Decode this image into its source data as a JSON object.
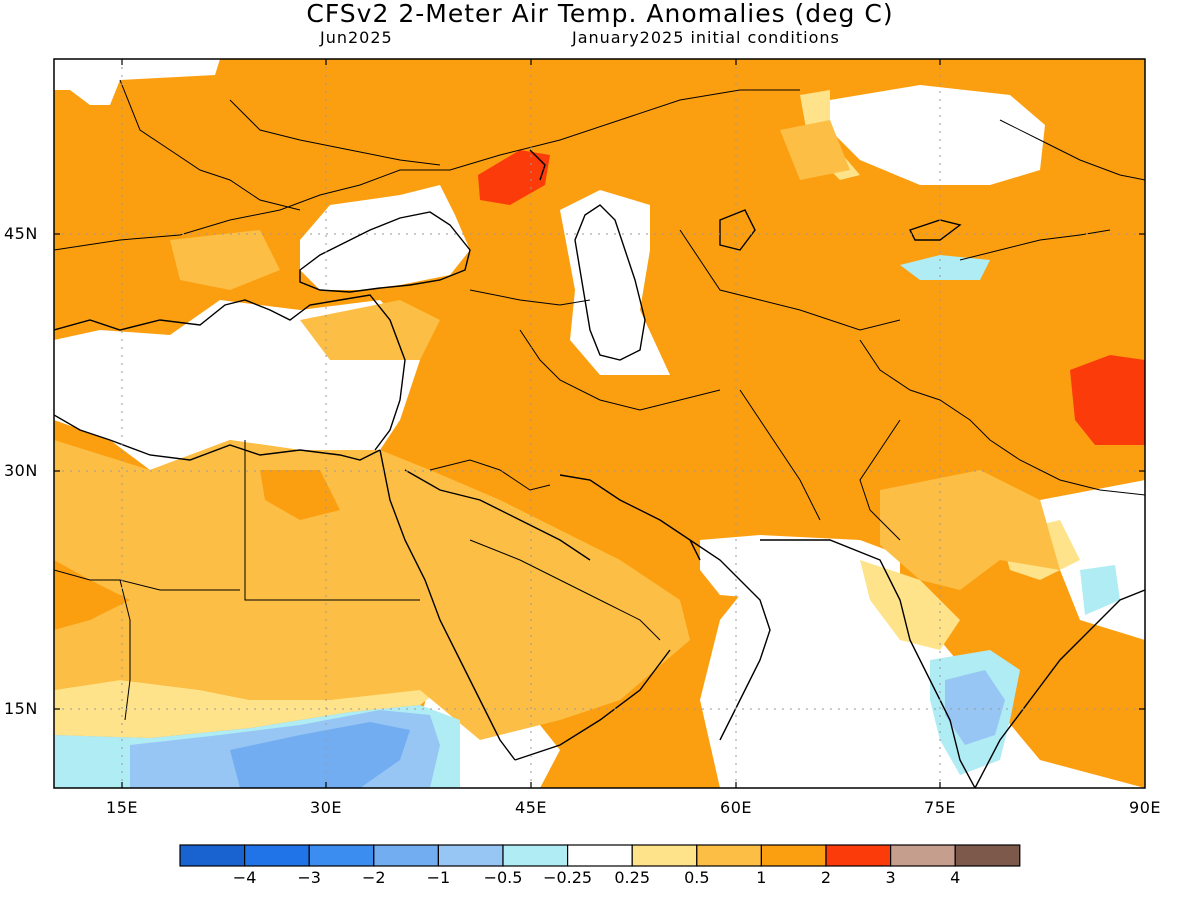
{
  "header": {
    "title": "CFSv2 2-Meter Air Temp. Anomalies (deg C)",
    "valid_month": "Jun2025",
    "init": "January2025 initial conditions"
  },
  "map": {
    "lon_range": [
      10,
      90
    ],
    "lat_range": [
      10,
      55
    ],
    "lat_ticks": [
      "45N",
      "30N",
      "15N"
    ],
    "lon_ticks": [
      "15E",
      "30E",
      "45E",
      "60E",
      "75E",
      "90E"
    ]
  },
  "legend": {
    "colors": [
      "#1863d0",
      "#2173e8",
      "#3c8df0",
      "#71adf0",
      "#97c6f4",
      "#b0ecf4",
      "#ffffff",
      "#fee38a",
      "#fcbe45",
      "#fb9f10",
      "#fb3c0a",
      "#c69e8e",
      "#7d594b"
    ],
    "labels": [
      "−4",
      "−3",
      "−2",
      "−1",
      "−0.5",
      "−0.25",
      "0.25",
      "0.5",
      "1",
      "2",
      "3",
      "4"
    ]
  }
}
